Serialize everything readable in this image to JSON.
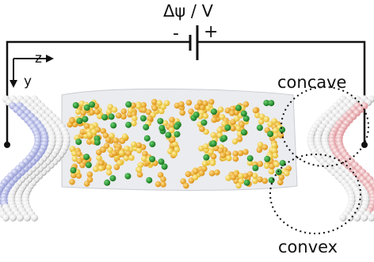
{
  "labels": {
    "voltage": "Δψ / V",
    "minus": "-",
    "plus": "+",
    "axis_z": "z",
    "axis_y": "y",
    "concave": "concave",
    "convex": "convex"
  },
  "colors": {
    "wire": "#111111",
    "bead": "#f2f2f2",
    "bead_edge": "#8a8a8a",
    "bead_blue": "#b9bfe8",
    "bead_pink": "#f2b3b8",
    "ion_orange": "#f3a71a",
    "ion_yellow": "#f6c93a",
    "ion_green": "#1f9a2a",
    "channel_fill": "#e4e6ea"
  }
}
